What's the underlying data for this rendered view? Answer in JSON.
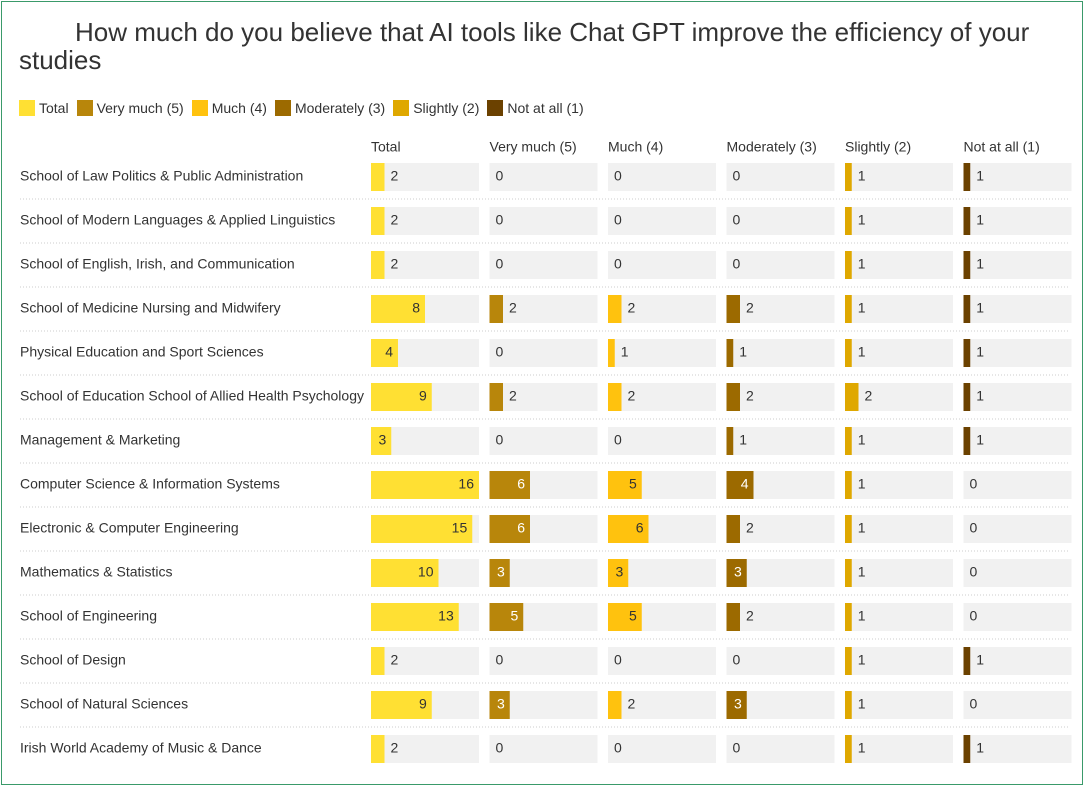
{
  "chart_data": {
    "type": "bar",
    "title": "How much do you believe that AI tools like Chat GPT improve the efficiency of your studies",
    "categories": [
      "School of Law Politics & Public Administration",
      "School of Modern Languages & Applied Linguistics",
      "School of English, Irish, and Communication",
      "School of Medicine Nursing and Midwifery",
      "Physical Education and Sport Sciences",
      "School of Education School of Allied Health Psychology",
      "Management & Marketing",
      "Computer Science & Information Systems",
      "Electronic & Computer Engineering",
      "Mathematics & Statistics",
      "School of Engineering",
      "School of Design",
      "School of Natural Sciences",
      "Irish World Academy of Music & Dance"
    ],
    "series": [
      {
        "name": "Total",
        "color": "#ffe033",
        "values": [
          2,
          2,
          2,
          8,
          4,
          9,
          3,
          16,
          15,
          10,
          13,
          2,
          9,
          2
        ]
      },
      {
        "name": "Very much (5)",
        "color": "#b8860b",
        "values": [
          0,
          0,
          0,
          2,
          0,
          2,
          0,
          6,
          6,
          3,
          5,
          0,
          3,
          0
        ]
      },
      {
        "name": "Much (4)",
        "color": "#ffc20e",
        "values": [
          0,
          0,
          0,
          2,
          1,
          2,
          0,
          5,
          6,
          3,
          5,
          0,
          2,
          0
        ]
      },
      {
        "name": "Moderately (3)",
        "color": "#9c6a00",
        "values": [
          0,
          0,
          0,
          2,
          1,
          2,
          1,
          4,
          2,
          3,
          2,
          0,
          3,
          0
        ]
      },
      {
        "name": "Slightly (2)",
        "color": "#dfa800",
        "values": [
          1,
          1,
          1,
          1,
          1,
          2,
          1,
          1,
          1,
          1,
          1,
          1,
          1,
          1
        ]
      },
      {
        "name": "Not at all (1)",
        "color": "#6b4100",
        "values": [
          1,
          1,
          1,
          1,
          1,
          1,
          1,
          0,
          0,
          0,
          0,
          1,
          0,
          1
        ]
      }
    ]
  }
}
